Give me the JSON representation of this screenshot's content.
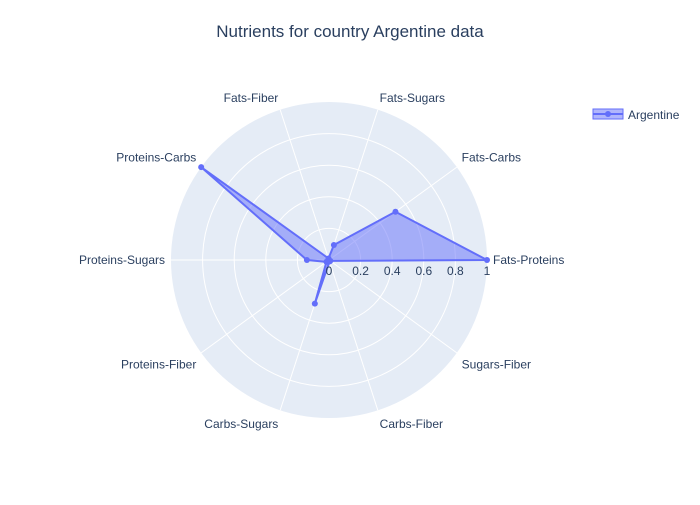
{
  "chart_data": {
    "type": "radar",
    "title": "Nutrients for country Argentine data",
    "categories": [
      "Fats-Proteins",
      "Fats-Carbs",
      "Fats-Sugars",
      "Fats-Fiber",
      "Proteins-Carbs",
      "Proteins-Sugars",
      "Proteins-Fiber",
      "Carbs-Sugars",
      "Carbs-Fiber",
      "Sugars-Fiber"
    ],
    "series": [
      {
        "name": "Argentine",
        "values": [
          1.0,
          0.52,
          0.1,
          0.01,
          1.0,
          0.14,
          0.02,
          0.29,
          0.01,
          0.01
        ]
      }
    ],
    "radial_range": [
      0,
      1
    ],
    "radial_ticks": [
      "0",
      "0.2",
      "0.4",
      "0.6",
      "0.8",
      "1"
    ],
    "legend": {
      "position": "top-right",
      "entries": [
        "Argentine"
      ]
    },
    "colors": {
      "line": "#636efa",
      "fill": "rgba(99,110,250,0.5)",
      "polar_bg": "#e5ecf6",
      "grid": "#ffffff",
      "text": "#2a3f5f"
    }
  }
}
